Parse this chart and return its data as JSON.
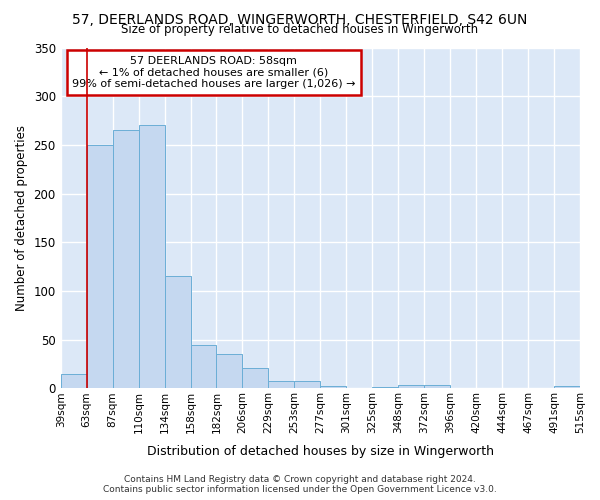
{
  "title_line1": "57, DEERLANDS ROAD, WINGERWORTH, CHESTERFIELD, S42 6UN",
  "title_line2": "Size of property relative to detached houses in Wingerworth",
  "xlabel": "Distribution of detached houses by size in Wingerworth",
  "ylabel": "Number of detached properties",
  "bar_values": [
    15,
    250,
    265,
    270,
    115,
    45,
    35,
    21,
    8,
    8,
    3,
    0,
    2,
    4,
    4,
    0,
    0,
    0,
    0,
    3
  ],
  "bar_labels": [
    "39sqm",
    "63sqm",
    "87sqm",
    "110sqm",
    "134sqm",
    "158sqm",
    "182sqm",
    "206sqm",
    "229sqm",
    "253sqm",
    "277sqm",
    "301sqm",
    "325sqm",
    "348sqm",
    "372sqm",
    "396sqm",
    "420sqm",
    "444sqm",
    "467sqm",
    "491sqm",
    "515sqm"
  ],
  "bar_color": "#c5d8f0",
  "bar_edge_color": "#6baed6",
  "bg_color": "#dce8f7",
  "grid_color": "#ffffff",
  "annotation_line1": "57 DEERLANDS ROAD: 58sqm",
  "annotation_line2": "← 1% of detached houses are smaller (6)",
  "annotation_line3": "99% of semi-detached houses are larger (1,026) →",
  "annotation_border_color": "#cc0000",
  "ylim_max": 350,
  "yticks": [
    0,
    50,
    100,
    150,
    200,
    250,
    300,
    350
  ],
  "vline_x": 1.0,
  "footer_line1": "Contains HM Land Registry data © Crown copyright and database right 2024.",
  "footer_line2": "Contains public sector information licensed under the Open Government Licence v3.0."
}
